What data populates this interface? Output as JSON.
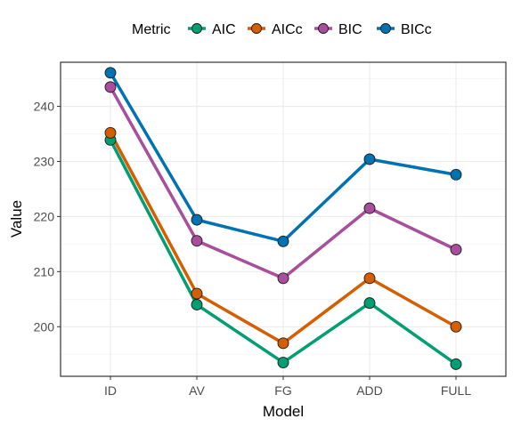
{
  "chart_data": {
    "type": "line",
    "xlabel": "Model",
    "ylabel": "Value",
    "categories": [
      "ID",
      "AV",
      "FG",
      "ADD",
      "FULL"
    ],
    "ylim": [
      191,
      248
    ],
    "yticks": [
      200,
      210,
      220,
      230,
      240
    ],
    "grid": true,
    "legend": {
      "title": "Metric",
      "placement": "top"
    },
    "series": [
      {
        "name": "AIC",
        "color": "#009E73",
        "values": [
          233.9,
          204.0,
          193.5,
          204.3,
          193.2
        ]
      },
      {
        "name": "AICc",
        "color": "#D55E00",
        "values": [
          235.2,
          206.0,
          197.0,
          208.8,
          200.0
        ]
      },
      {
        "name": "BIC",
        "color": "#A84E9C",
        "values": [
          243.5,
          215.6,
          208.8,
          221.5,
          214.0
        ]
      },
      {
        "name": "BICc",
        "color": "#0072B2",
        "values": [
          246.1,
          219.4,
          215.5,
          230.4,
          227.6
        ]
      }
    ]
  }
}
